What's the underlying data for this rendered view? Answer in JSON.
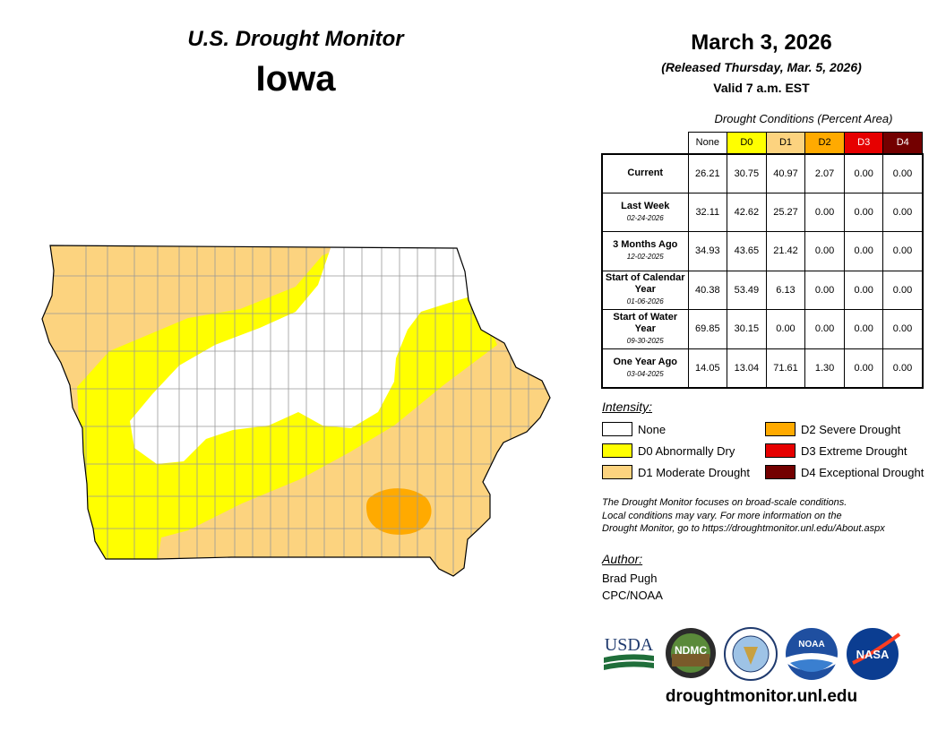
{
  "header": {
    "monitor_title": "U.S. Drought Monitor",
    "state": "Iowa",
    "date": "March 3, 2026",
    "released": "(Released Thursday, Mar. 5, 2026)",
    "valid": "Valid 7 a.m. EST"
  },
  "table": {
    "caption": "Drought Conditions (Percent Area)",
    "columns": [
      {
        "label": "None",
        "color": "#ffffff",
        "text_color": "#000000"
      },
      {
        "label": "D0",
        "color": "#ffff00",
        "text_color": "#000000"
      },
      {
        "label": "D1",
        "color": "#fcd37f",
        "text_color": "#000000"
      },
      {
        "label": "D2",
        "color": "#ffaa00",
        "text_color": "#000000"
      },
      {
        "label": "D3",
        "color": "#e60000",
        "text_color": "#ffffff"
      },
      {
        "label": "D4",
        "color": "#730000",
        "text_color": "#ffffff"
      }
    ],
    "rows": [
      {
        "label": "Current",
        "date": "",
        "values": [
          "26.21",
          "30.75",
          "40.97",
          "2.07",
          "0.00",
          "0.00"
        ]
      },
      {
        "label": "Last Week",
        "date": "02-24-2026",
        "values": [
          "32.11",
          "42.62",
          "25.27",
          "0.00",
          "0.00",
          "0.00"
        ]
      },
      {
        "label": "3 Months Ago",
        "date": "12-02-2025",
        "values": [
          "34.93",
          "43.65",
          "21.42",
          "0.00",
          "0.00",
          "0.00"
        ]
      },
      {
        "label": "Start of Calendar Year",
        "date": "01-06-2026",
        "values": [
          "40.38",
          "53.49",
          "6.13",
          "0.00",
          "0.00",
          "0.00"
        ]
      },
      {
        "label": "Start of Water Year",
        "date": "09-30-2025",
        "values": [
          "69.85",
          "30.15",
          "0.00",
          "0.00",
          "0.00",
          "0.00"
        ]
      },
      {
        "label": "One Year Ago",
        "date": "03-04-2025",
        "values": [
          "14.05",
          "13.04",
          "71.61",
          "1.30",
          "0.00",
          "0.00"
        ]
      }
    ]
  },
  "legend": {
    "title": "Intensity:",
    "items": [
      {
        "label": "None",
        "color": "#ffffff"
      },
      {
        "label": "D0 Abnormally Dry",
        "color": "#ffff00"
      },
      {
        "label": "D1 Moderate Drought",
        "color": "#fcd37f"
      },
      {
        "label": "D2 Severe Drought",
        "color": "#ffaa00"
      },
      {
        "label": "D3 Extreme Drought",
        "color": "#e60000"
      },
      {
        "label": "D4 Exceptional Drought",
        "color": "#730000"
      }
    ]
  },
  "note": {
    "line1": "The Drought Monitor focuses on broad-scale conditions.",
    "line2": "Local conditions may vary. For more information on the",
    "line3": "Drought Monitor, go to https://droughtmonitor.unl.edu/About.aspx"
  },
  "author": {
    "title": "Author:",
    "name": "Brad Pugh",
    "org": "CPC/NOAA"
  },
  "logos": {
    "usda": "USDA",
    "ndmc": "NDMC",
    "noaa": "NOAA",
    "nasa": "NASA"
  },
  "site_url": "droughtmonitor.unl.edu"
}
